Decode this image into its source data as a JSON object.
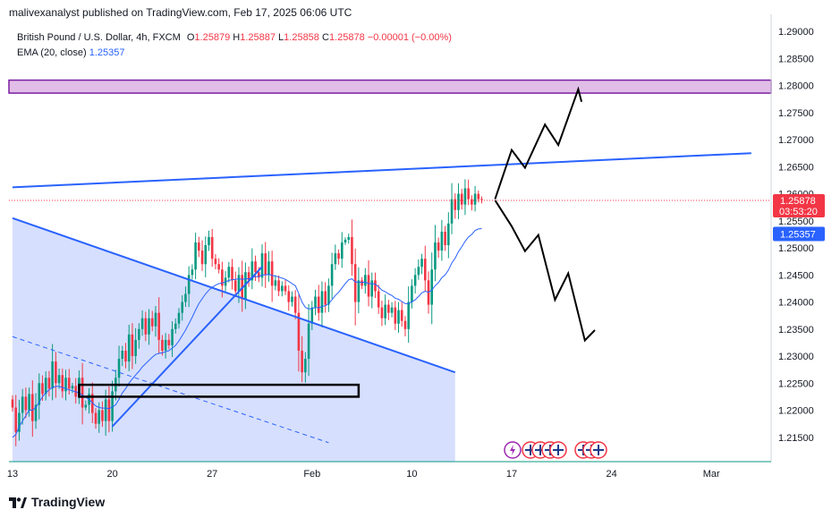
{
  "header": {
    "publisher_line": "malivexanalyst published on TradingView.com, Feb 17, 2025 06:06 UTC"
  },
  "legend": {
    "symbol": "British Pound / U.S. Dollar, 4h, FXCM",
    "o_label": "O",
    "o_value": "1.25879",
    "h_label": "H",
    "h_value": "1.25887",
    "l_label": "L",
    "l_value": "1.25858",
    "c_label": "C",
    "c_value": "1.25878",
    "change": "−0.00001 (−0.00%)",
    "ema_label": "EMA (20, close)",
    "ema_value": "1.25357"
  },
  "badges": {
    "price": "1.25878",
    "countdown": "03:53:20",
    "ema": "1.25357"
  },
  "footer": {
    "brand": "TradingView"
  },
  "colors": {
    "up": "#089981",
    "down": "#f23645",
    "ema": "#2962ff",
    "trendline": "#2962ff",
    "zone": "#e1bee7",
    "triangle": "#d1dcfd"
  },
  "chart_data": {
    "type": "candlestick",
    "symbol": "GBPUSD",
    "timeframe": "4h",
    "y_ticks": [
      1.29,
      1.285,
      1.28,
      1.275,
      1.27,
      1.265,
      1.26,
      1.255,
      1.25,
      1.245,
      1.24,
      1.235,
      1.23,
      1.225,
      1.22,
      1.215
    ],
    "y_tick_labels": [
      "1.29000",
      "1.28500",
      "1.28000",
      "1.27500",
      "1.27000",
      "1.26500",
      "1.26000",
      "1.25500",
      "1.25000",
      "1.24500",
      "1.24000",
      "1.23500",
      "1.23000",
      "1.22500",
      "1.22000",
      "1.21500"
    ],
    "x_ticks": [
      {
        "label": "13",
        "bar": 0
      },
      {
        "label": "20",
        "bar": 30
      },
      {
        "label": "27",
        "bar": 60
      },
      {
        "label": "Feb",
        "bar": 90
      },
      {
        "label": "10",
        "bar": 120
      },
      {
        "label": "17",
        "bar": 150
      },
      {
        "label": "24",
        "bar": 180
      },
      {
        "label": "Mar",
        "bar": 210
      }
    ],
    "ylim": [
      1.2105,
      1.2925
    ],
    "candles_close": [
      1.2205,
      1.216,
      1.2195,
      1.2225,
      1.22,
      1.223,
      1.218,
      1.221,
      1.225,
      1.223,
      1.226,
      1.224,
      1.229,
      1.225,
      1.2265,
      1.2235,
      1.226,
      1.224,
      1.2245,
      1.2225,
      1.226,
      1.2205,
      1.221,
      1.223,
      1.2195,
      1.2175,
      1.22,
      1.218,
      1.222,
      1.218,
      1.2235,
      1.226,
      1.2295,
      1.231,
      1.229,
      1.234,
      1.23,
      1.233,
      1.235,
      1.237,
      1.234,
      1.237,
      1.2355,
      1.238,
      1.233,
      1.231,
      1.233,
      1.232,
      1.235,
      1.236,
      1.238,
      1.24,
      1.2415,
      1.245,
      1.246,
      1.251,
      1.2495,
      1.247,
      1.2505,
      1.252,
      1.248,
      1.247,
      1.246,
      1.243,
      1.2445,
      1.2465,
      1.244,
      1.242,
      1.245,
      1.2405,
      1.2455,
      1.244,
      1.2475,
      1.2455,
      1.2445,
      1.249,
      1.245,
      1.2475,
      1.243,
      1.244,
      1.242,
      1.243,
      1.242,
      1.24,
      1.241,
      1.238,
      1.231,
      1.227,
      1.2295,
      1.236,
      1.239,
      1.241,
      1.238,
      1.242,
      1.2395,
      1.243,
      1.247,
      1.249,
      1.248,
      1.251,
      1.2515,
      1.252,
      1.247,
      1.24,
      1.244,
      1.243,
      1.245,
      1.241,
      1.244,
      1.242,
      1.239,
      1.237,
      1.2395,
      1.238,
      1.239,
      1.236,
      1.2385,
      1.2365,
      1.235,
      1.24,
      1.243,
      1.245,
      1.2465,
      1.248,
      1.244,
      1.2395,
      1.246,
      1.251,
      1.2495,
      1.253,
      1.2505,
      1.2545,
      1.259,
      1.257,
      1.26,
      1.258,
      1.261,
      1.259,
      1.258,
      1.26,
      1.259,
      1.2588
    ],
    "ema_20": [
      1.215,
      1.2155,
      1.217,
      1.218,
      1.219,
      1.22,
      1.22,
      1.2205,
      1.2215,
      1.2225,
      1.2232,
      1.2238,
      1.2242,
      1.2244,
      1.2244,
      1.2242,
      1.224,
      1.2238,
      1.2236,
      1.2234,
      1.2232,
      1.2228,
      1.2224,
      1.222,
      1.2214,
      1.2208,
      1.2205,
      1.2204,
      1.2204,
      1.2203,
      1.2206,
      1.221,
      1.222,
      1.2232,
      1.224,
      1.225,
      1.2258,
      1.2265,
      1.2272,
      1.228,
      1.2286,
      1.2292,
      1.2298,
      1.2303,
      1.2305,
      1.2306,
      1.2308,
      1.231,
      1.2315,
      1.232,
      1.2328,
      1.2338,
      1.2348,
      1.236,
      1.2372,
      1.2385,
      1.2397,
      1.2406,
      1.2415,
      1.2422,
      1.2427,
      1.2431,
      1.2434,
      1.2435,
      1.2437,
      1.244,
      1.2441,
      1.2442,
      1.2443,
      1.2442,
      1.2443,
      1.2443,
      1.2445,
      1.2447,
      1.2447,
      1.245,
      1.245,
      1.2451,
      1.2449,
      1.2448,
      1.2446,
      1.2444,
      1.2442,
      1.2438,
      1.2434,
      1.243,
      1.2416,
      1.24,
      1.239,
      1.2387,
      1.2388,
      1.239,
      1.2389,
      1.2392,
      1.2393,
      1.2397,
      1.2404,
      1.2412,
      1.2418,
      1.2426,
      1.2434,
      1.2441,
      1.2443,
      1.2437,
      1.2437,
      1.2436,
      1.2437,
      1.2434,
      1.2434,
      1.2433,
      1.2428,
      1.2422,
      1.2419,
      1.2415,
      1.2412,
      1.2407,
      1.2405,
      1.2401,
      1.2397,
      1.2397,
      1.24,
      1.2404,
      1.241,
      1.2417,
      1.242,
      1.2418,
      1.2422,
      1.243,
      1.2436,
      1.2445,
      1.245,
      1.2459,
      1.2472,
      1.2481,
      1.2493,
      1.2502,
      1.2512,
      1.252,
      1.2525,
      1.2532,
      1.2535,
      1.25357
    ],
    "last_price": 1.25878,
    "ema_last": 1.25357,
    "annotations": {
      "resistance_zone": [
        1.2786,
        1.281
      ],
      "rising_trendline": [
        {
          "bar": 0,
          "y": 1.2612
        },
        {
          "bar": 222,
          "y": 1.2675
        }
      ],
      "falling_trendline": [
        {
          "bar": 0,
          "y": 1.2555
        },
        {
          "bar": 133,
          "y": 1.227
        }
      ],
      "falling_dashed_line": [
        {
          "bar": 0,
          "y": 1.2336
        },
        {
          "bar": 95,
          "y": 1.214
        }
      ],
      "support_trendline": [
        {
          "bar": 30,
          "y": 1.217
        },
        {
          "bar": 75,
          "y": 1.2465
        }
      ],
      "support_box": {
        "from_bar": 20,
        "to_bar": 104,
        "y_top": 1.2247,
        "y_bottom": 1.2225
      },
      "bullish_path": [
        {
          "bar": 145,
          "y": 1.259
        },
        {
          "bar": 150,
          "y": 1.2681
        },
        {
          "bar": 154,
          "y": 1.2648
        },
        {
          "bar": 160,
          "y": 1.2728
        },
        {
          "bar": 164,
          "y": 1.269
        },
        {
          "bar": 170,
          "y": 1.2793
        },
        {
          "bar": 171,
          "y": 1.277
        }
      ],
      "bearish_path": [
        {
          "bar": 145,
          "y": 1.2588
        },
        {
          "bar": 150,
          "y": 1.254
        },
        {
          "bar": 154,
          "y": 1.2494
        },
        {
          "bar": 158,
          "y": 1.2524
        },
        {
          "bar": 163,
          "y": 1.2404
        },
        {
          "bar": 167,
          "y": 1.2453
        },
        {
          "bar": 172,
          "y": 1.2329
        },
        {
          "bar": 175,
          "y": 1.2348
        }
      ]
    },
    "grid": false
  }
}
